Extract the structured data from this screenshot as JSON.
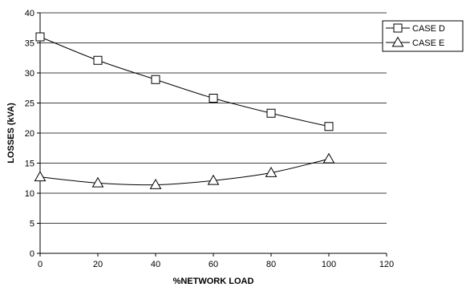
{
  "chart_data": {
    "type": "line",
    "title": "",
    "xlabel": "%NETWORK LOAD",
    "ylabel": "LOSSES (kVA)",
    "xlim": [
      0,
      120
    ],
    "ylim": [
      0,
      40
    ],
    "x_ticks": [
      0,
      20,
      40,
      60,
      80,
      100,
      120
    ],
    "y_ticks": [
      0,
      5,
      10,
      15,
      20,
      25,
      30,
      35,
      40
    ],
    "grid": "horizontal",
    "legend_position": "right",
    "x": [
      0,
      20,
      40,
      60,
      80,
      100
    ],
    "series": [
      {
        "name": "CASE D",
        "marker": "square",
        "values": [
          36.0,
          32.1,
          28.9,
          25.8,
          23.3,
          21.1
        ]
      },
      {
        "name": "CASE E",
        "marker": "triangle",
        "values": [
          12.7,
          11.7,
          11.4,
          12.1,
          13.4,
          15.7
        ]
      }
    ]
  }
}
